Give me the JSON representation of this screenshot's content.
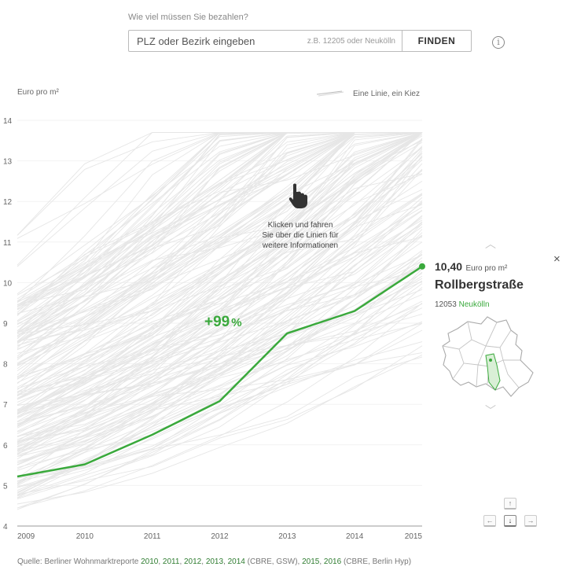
{
  "search": {
    "question": "Wie viel müssen Sie bezahlen?",
    "placeholder": "PLZ oder Bezirk eingeben",
    "hint": "z.B. 12205 oder Neukölln",
    "button_label": "FINDEN",
    "info_icon": "i"
  },
  "chart_data": {
    "type": "line",
    "ylabel": "Euro pro m²",
    "legend_label": "Eine Linie, ein Kiez",
    "x": [
      2009,
      2010,
      2011,
      2012,
      2013,
      2014,
      2015
    ],
    "ylim": [
      4,
      14
    ],
    "yticks": [
      4,
      5,
      6,
      7,
      8,
      9,
      10,
      11,
      12,
      13,
      14
    ],
    "background_series_count": 190,
    "highlight": {
      "name": "Rollbergstraße",
      "values": [
        5.22,
        5.52,
        6.25,
        7.08,
        8.75,
        9.3,
        10.4
      ],
      "color": "#3aa93c",
      "change_label": "+99",
      "change_unit": "%"
    },
    "hint_lines": [
      "Klicken und fahren",
      "Sie über die Linien für",
      "weitere Informationen"
    ],
    "colors": {
      "background_line": "#e6e6e6",
      "highlight": "#3aa93c"
    }
  },
  "detail": {
    "price": "10,40",
    "price_unit": "Euro pro m²",
    "street": "Rollbergstraße",
    "plz": "12053",
    "district": "Neukölln",
    "close_icon": "×",
    "up_icon": "︿",
    "down_icon": "﹀"
  },
  "keys": {
    "up": "↑",
    "left": "←",
    "down": "↓",
    "right": "→"
  },
  "source": {
    "prefix": "Quelle: Berliner Wohnmarktreporte ",
    "y2010": "2010",
    "y2011": "2011",
    "y2012": "2012",
    "y2013": "2013",
    "y2014": "2014",
    "mid": " (CBRE, GSW), ",
    "y2015": "2015",
    "y2016": "2016",
    "suffix": " (CBRE, Berlin Hyp)",
    "sep": ", "
  }
}
